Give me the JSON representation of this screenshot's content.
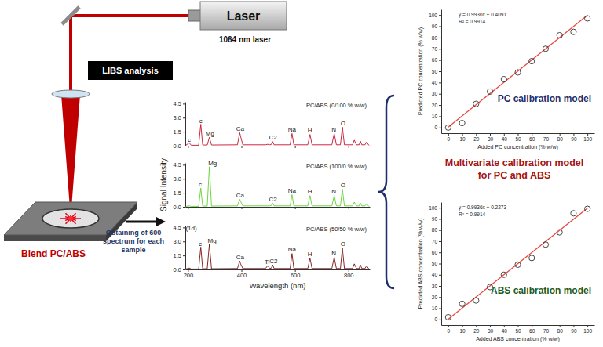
{
  "diagram": {
    "laser": "Laser",
    "laser_wavelength": "1064 nm laser",
    "technique": "LIBS analysis",
    "sample": "Blend PC/ABS",
    "step": [
      "Obtaining of 600",
      "spectrum for each",
      "sample"
    ],
    "model": [
      "Multivariate calibration model",
      "for PC and ABS"
    ]
  },
  "chart_data": [
    {
      "type": "line",
      "tick_labels": "y",
      "xlim": [
        190,
        880
      ],
      "ylim": [
        0,
        4.7
      ],
      "xticks": [
        200,
        400,
        600,
        800
      ],
      "yticks": [
        {
          "value": 0,
          "label": "0.0"
        },
        1.5,
        {
          "value": 3,
          "label": "3.0"
        },
        4.5
      ],
      "x": [
        192,
        205,
        212,
        240,
        247.9,
        255,
        272,
        280,
        288,
        385,
        393.4,
        396.8,
        405,
        490,
        498,
        506,
        512,
        516.5,
        522,
        582,
        589,
        596,
        648,
        656.3,
        664,
        738,
        746.8,
        755,
        770,
        777.4,
        785,
        815,
        822,
        830,
        840,
        844.6,
        850,
        862,
        868,
        875,
        878
      ],
      "series": [
        {
          "name": "PC/ABS (0/100 % w/w)",
          "color": "#c8102e",
          "values": [
            0.05,
            0.3,
            0.05,
            0.05,
            2.3,
            0.08,
            0.08,
            0.9,
            0.08,
            0.1,
            1.4,
            1.0,
            0.1,
            0.1,
            0.15,
            0.1,
            0.15,
            0.45,
            0.1,
            0.1,
            1.3,
            0.1,
            0.1,
            1.2,
            0.1,
            0.1,
            1.3,
            0.1,
            0.1,
            2.0,
            0.1,
            0.1,
            0.6,
            0.1,
            0.1,
            0.5,
            0.1,
            0.1,
            0.4,
            0.1,
            0.05
          ]
        }
      ],
      "annotations": [
        {
          "text": "c",
          "x": 205,
          "y": 0.45
        },
        {
          "text": "c",
          "x": 248,
          "y": 2.45
        },
        {
          "text": "Mg",
          "x": 282,
          "y": 1.1
        },
        {
          "text": "Ca",
          "x": 395,
          "y": 1.6
        },
        {
          "text": "C2",
          "x": 518,
          "y": 0.65
        },
        {
          "text": "Na",
          "x": 589,
          "y": 1.5
        },
        {
          "text": "H",
          "x": 656,
          "y": 1.4
        },
        {
          "text": "N",
          "x": 745,
          "y": 1.5
        },
        {
          "text": "O",
          "x": 780,
          "y": 2.2
        }
      ]
    },
    {
      "type": "line",
      "tick_labels": "y",
      "y_label": "Signal Intensity",
      "xlim": [
        190,
        880
      ],
      "ylim": [
        0,
        4.7
      ],
      "xticks": [
        200,
        400,
        600,
        800
      ],
      "yticks": [
        {
          "value": 0,
          "label": "0.0"
        },
        1.5,
        {
          "value": 3,
          "label": "3.0"
        },
        4.5
      ],
      "x": [
        192,
        205,
        212,
        240,
        247.9,
        255,
        272,
        280,
        288,
        385,
        393.4,
        396.8,
        405,
        490,
        498,
        506,
        512,
        516.5,
        522,
        582,
        589,
        596,
        648,
        656.3,
        664,
        738,
        746.8,
        755,
        770,
        777.4,
        785,
        815,
        822,
        830,
        840,
        844.6,
        850,
        862,
        868,
        875,
        878
      ],
      "series": [
        {
          "name": "PC/ABS (100/0 % w/w)",
          "color": "#5fd32f",
          "values": [
            0.05,
            0.1,
            0.05,
            0.05,
            2.0,
            0.08,
            0.08,
            4.3,
            0.08,
            0.1,
            0.8,
            0.6,
            0.1,
            0.1,
            0.1,
            0.1,
            0.15,
            0.4,
            0.1,
            0.1,
            1.3,
            0.1,
            0.1,
            1.2,
            0.1,
            0.1,
            1.2,
            0.1,
            0.1,
            1.9,
            0.1,
            0.1,
            0.5,
            0.1,
            0.1,
            0.4,
            0.1,
            0.1,
            0.3,
            0.1,
            0.05
          ]
        }
      ],
      "annotations": [
        {
          "text": "c",
          "x": 246,
          "y": 2.15
        },
        {
          "text": "Mg",
          "x": 292,
          "y": 4.45
        },
        {
          "text": "Ca",
          "x": 395,
          "y": 1.0
        },
        {
          "text": "C2",
          "x": 518,
          "y": 0.6
        },
        {
          "text": "Na",
          "x": 589,
          "y": 1.5
        },
        {
          "text": "H",
          "x": 656,
          "y": 1.4
        },
        {
          "text": "N",
          "x": 745,
          "y": 1.4
        },
        {
          "text": "O",
          "x": 780,
          "y": 2.1
        }
      ]
    },
    {
      "type": "line",
      "x_label": "Wavelength (nm)",
      "xlim": [
        190,
        880
      ],
      "ylim": [
        0,
        4.7
      ],
      "xticks": [
        200,
        400,
        600,
        800
      ],
      "yticks": [
        {
          "value": 0,
          "label": "0.0"
        },
        1.5,
        {
          "value": 3,
          "label": "3.0"
        },
        4.5
      ],
      "x": [
        192,
        205,
        212,
        240,
        247.9,
        255,
        272,
        280,
        288,
        385,
        393.4,
        396.8,
        405,
        490,
        498,
        506,
        512,
        516.5,
        522,
        582,
        589,
        596,
        648,
        656.3,
        664,
        738,
        746.8,
        755,
        770,
        777.4,
        785,
        815,
        822,
        830,
        840,
        844.6,
        850,
        862,
        868,
        875,
        878
      ],
      "series": [
        {
          "name": "PC/ABS (50/50 % w/w)",
          "color": "#7b1010",
          "values": [
            0.05,
            0.15,
            0.05,
            0.05,
            2.4,
            0.08,
            0.08,
            2.7,
            0.08,
            0.1,
            0.9,
            0.6,
            0.1,
            0.1,
            0.4,
            0.1,
            0.15,
            0.5,
            0.1,
            0.1,
            1.7,
            0.1,
            0.1,
            1.2,
            0.1,
            0.1,
            1.3,
            0.1,
            0.1,
            2.3,
            0.1,
            0.1,
            0.6,
            0.1,
            0.1,
            0.5,
            0.1,
            0.1,
            0.4,
            0.1,
            0.05
          ]
        }
      ],
      "annotations": [
        {
          "text": "(1d)",
          "x": 212,
          "y": 4.2
        },
        {
          "text": "c",
          "x": 246,
          "y": 2.55
        },
        {
          "text": "Mg",
          "x": 290,
          "y": 2.85
        },
        {
          "text": "Ca",
          "x": 395,
          "y": 1.1
        },
        {
          "text": "Ti",
          "x": 496,
          "y": 0.6
        },
        {
          "text": "C2",
          "x": 520,
          "y": 0.7
        },
        {
          "text": "Na",
          "x": 589,
          "y": 1.9
        },
        {
          "text": "H",
          "x": 656,
          "y": 1.4
        },
        {
          "text": "N",
          "x": 745,
          "y": 1.5
        },
        {
          "text": "O",
          "x": 780,
          "y": 2.5
        }
      ]
    },
    {
      "type": "scatter",
      "title": "PC calibration model",
      "x_label": "Added PC concentration (% w/w)",
      "y_label": "Predicted PC concentration (% w/w)",
      "xlim": [
        -5,
        105
      ],
      "ylim": [
        -5,
        105
      ],
      "xticks": [
        0,
        10,
        20,
        30,
        40,
        50,
        60,
        70,
        80,
        90,
        100
      ],
      "yticks": [
        0,
        10,
        20,
        30,
        40,
        50,
        60,
        70,
        80,
        90,
        100
      ],
      "annotations": [
        "y = 0.9936x + 0.4091",
        "R² = 0.9914"
      ],
      "series": [
        {
          "type": "line",
          "color": "#e8473f",
          "x": [
            0,
            100
          ],
          "values": [
            0.4091,
            99.7691
          ]
        },
        {
          "type": "scatter",
          "marker": "open-circle",
          "color": "#333333",
          "x": [
            0,
            10,
            20,
            30,
            40,
            50,
            60,
            70,
            80,
            90,
            100
          ],
          "values": [
            0,
            4,
            21,
            32,
            43,
            49,
            59,
            70,
            82,
            85,
            97
          ]
        }
      ]
    },
    {
      "type": "scatter",
      "title": "ABS calibration model",
      "x_label": "Added ABS concentration (% w/w)",
      "y_label": "Predicted ABS concentration (% w/w)",
      "xlim": [
        -5,
        105
      ],
      "ylim": [
        -5,
        105
      ],
      "xticks": [
        0,
        10,
        20,
        30,
        40,
        50,
        60,
        70,
        80,
        90,
        100
      ],
      "yticks": [
        0,
        10,
        20,
        30,
        40,
        50,
        60,
        70,
        80,
        90,
        100
      ],
      "annotations": [
        "y = 0.9936x + 0.2273",
        "R² = 0.9914"
      ],
      "series": [
        {
          "type": "line",
          "color": "#e8473f",
          "x": [
            0,
            100
          ],
          "values": [
            0.2273,
            99.5873
          ]
        },
        {
          "type": "scatter",
          "marker": "open-circle",
          "color": "#333333",
          "x": [
            0,
            10,
            20,
            30,
            40,
            50,
            60,
            70,
            80,
            90,
            100
          ],
          "values": [
            2,
            14,
            17,
            29,
            40,
            49,
            55,
            67,
            78,
            95,
            99
          ]
        }
      ]
    }
  ]
}
